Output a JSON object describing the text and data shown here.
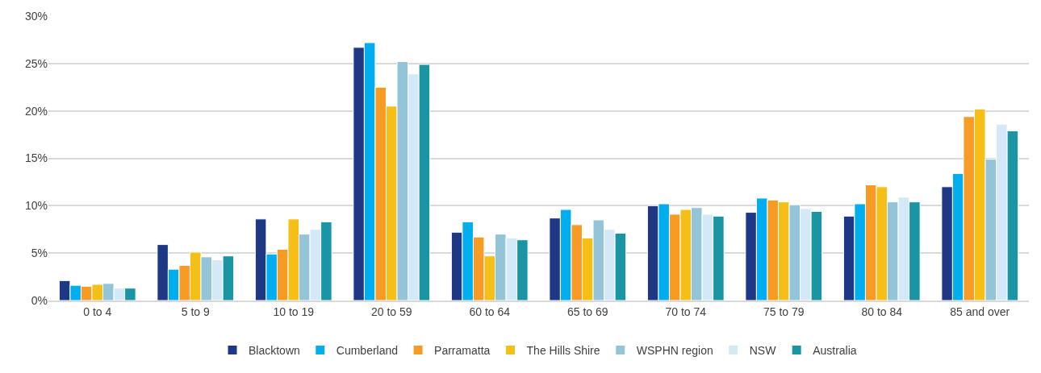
{
  "chart_data": {
    "type": "bar",
    "categories": [
      "0 to 4",
      "5 to 9",
      "10 to 19",
      "20 to 59",
      "60 to 64",
      "65 to 69",
      "70 to 74",
      "75 to 79",
      "80 to 84",
      "85 and over"
    ],
    "series": [
      {
        "name": "Blacktown",
        "color": "#1f3885",
        "values": [
          2.1,
          5.9,
          8.6,
          26.7,
          7.2,
          8.7,
          10.0,
          9.3,
          8.9,
          12.0
        ]
      },
      {
        "name": "Cumberland",
        "color": "#00adef",
        "values": [
          1.6,
          3.3,
          4.9,
          27.2,
          8.3,
          9.6,
          10.2,
          10.8,
          10.2,
          13.4
        ]
      },
      {
        "name": "Parramatta",
        "color": "#f79b24",
        "values": [
          1.5,
          3.7,
          5.4,
          22.5,
          6.7,
          8.0,
          9.1,
          10.6,
          12.2,
          19.4
        ]
      },
      {
        "name": "The Hills Shire",
        "color": "#f5bf18",
        "values": [
          1.7,
          5.1,
          8.6,
          20.5,
          4.7,
          6.6,
          9.6,
          10.4,
          12.0,
          20.2
        ]
      },
      {
        "name": "WSPHN region",
        "color": "#93c4d8",
        "values": [
          1.8,
          4.6,
          7.0,
          25.2,
          7.0,
          8.5,
          9.8,
          10.1,
          10.4,
          14.9
        ]
      },
      {
        "name": "NSW",
        "color": "#d3e9f7",
        "values": [
          1.3,
          4.3,
          7.5,
          23.9,
          6.6,
          7.5,
          9.1,
          9.7,
          10.9,
          18.6
        ]
      },
      {
        "name": "Australia",
        "color": "#1a95a3",
        "values": [
          1.3,
          4.7,
          8.3,
          24.9,
          6.4,
          7.1,
          8.9,
          9.4,
          10.4,
          17.9
        ]
      }
    ],
    "ylim": [
      0,
      30
    ],
    "yticks": [
      {
        "value": 0,
        "label": "0%"
      },
      {
        "value": 5,
        "label": "5%"
      },
      {
        "value": 10,
        "label": "10%"
      },
      {
        "value": 15,
        "label": "15%"
      },
      {
        "value": 20,
        "label": "20%"
      },
      {
        "value": 25,
        "label": "25%"
      },
      {
        "value": 30,
        "label": "30%"
      }
    ],
    "grid": "y",
    "legend": "bottom"
  }
}
